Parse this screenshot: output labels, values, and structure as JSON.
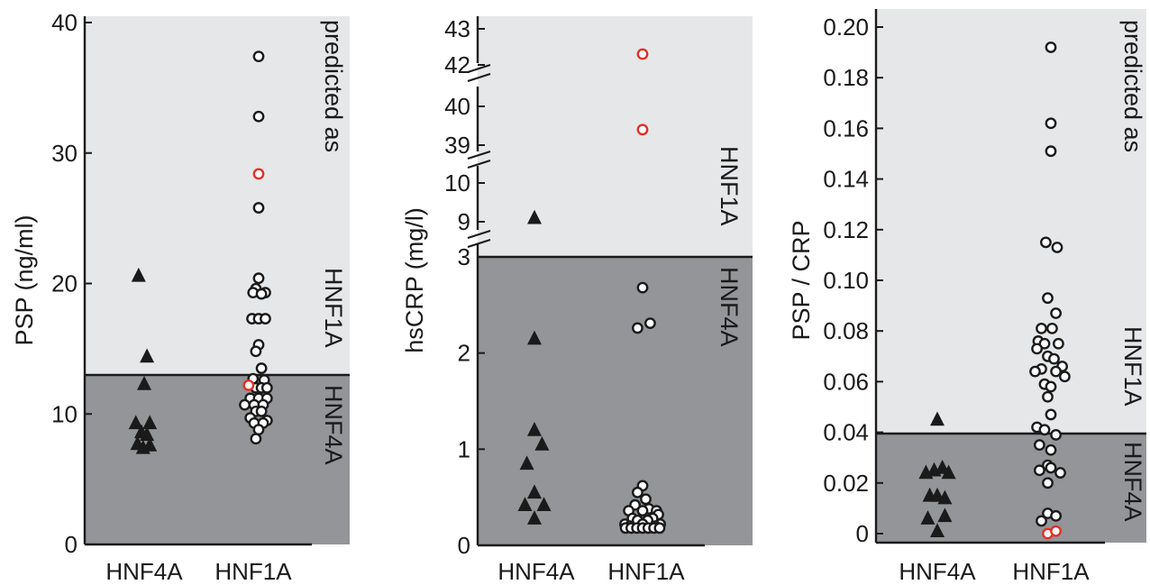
{
  "chart_data": [
    {
      "type": "scatter",
      "ylabel": "PSP (ng/ml)",
      "categories": [
        "HNF4A",
        "HNF1A"
      ],
      "ylim": [
        0,
        40
      ],
      "yticks": [
        0,
        10,
        20,
        30,
        40
      ],
      "threshold": 13,
      "zone_labels": {
        "upper": [
          "predicted as",
          "HNF1A"
        ],
        "lower": [
          "HNF4A"
        ]
      },
      "series": [
        {
          "name": "HNF4A",
          "marker": "triangle",
          "points": [
            [
              -0.1,
              20.6
            ],
            [
              0.05,
              14.4
            ],
            [
              0.0,
              12.3
            ],
            [
              -0.15,
              9.3
            ],
            [
              0.1,
              9.3
            ],
            [
              -0.05,
              8.6
            ],
            [
              0.05,
              8.4
            ],
            [
              -0.12,
              7.7
            ],
            [
              0.1,
              7.6
            ],
            [
              -0.02,
              7.4
            ]
          ]
        },
        {
          "name": "HNF1A",
          "marker": "circle",
          "points": [
            [
              0.0,
              37.4
            ],
            [
              0.0,
              32.8
            ],
            [
              0.0,
              25.8
            ],
            [
              0.0,
              20.4
            ],
            [
              -0.05,
              19.6
            ],
            [
              -0.1,
              19.3
            ],
            [
              0.12,
              19.3
            ],
            [
              0.05,
              19.2
            ],
            [
              -0.12,
              17.3
            ],
            [
              0.0,
              17.3
            ],
            [
              0.12,
              17.3
            ],
            [
              0.0,
              15.3
            ],
            [
              -0.05,
              14.8
            ],
            [
              0.05,
              13.5
            ],
            [
              -0.1,
              12.7
            ],
            [
              0.1,
              12.6
            ],
            [
              -0.05,
              12.0
            ],
            [
              0.05,
              12.0
            ],
            [
              0.15,
              12.0
            ],
            [
              -0.15,
              11.2
            ],
            [
              0.0,
              11.2
            ],
            [
              0.15,
              11.2
            ],
            [
              -0.25,
              10.7
            ],
            [
              -0.08,
              10.7
            ],
            [
              0.08,
              10.7
            ],
            [
              -0.05,
              10.2
            ],
            [
              0.05,
              10.2
            ],
            [
              -0.15,
              9.7
            ],
            [
              0.15,
              9.5
            ],
            [
              -0.08,
              9.3
            ],
            [
              0.08,
              9.3
            ],
            [
              0.0,
              8.8
            ],
            [
              -0.05,
              8.1
            ]
          ]
        },
        {
          "name": "HNF1A-red",
          "marker": "circle",
          "color": "#e32f25",
          "points": [
            [
              0.0,
              28.4
            ],
            [
              -0.18,
              12.2
            ]
          ]
        }
      ]
    },
    {
      "type": "scatter",
      "ylabel": "hsCRP (mg/l)",
      "categories": [
        "HNF4A",
        "HNF1A"
      ],
      "broken_axis": true,
      "ytick_labels": [
        "0",
        "1",
        "2",
        "3",
        "9",
        "10",
        "39",
        "40",
        "42",
        "43"
      ],
      "threshold": 3,
      "zone_labels": {
        "upper": [
          "HNF1A"
        ],
        "lower": [
          "HNF4A"
        ]
      },
      "series": [
        {
          "name": "HNF4A",
          "marker": "triangle",
          "points": [
            [
              0.0,
              9.1
            ],
            [
              0.0,
              2.15
            ],
            [
              0.0,
              1.2
            ],
            [
              0.12,
              1.05
            ],
            [
              -0.12,
              0.85
            ],
            [
              0.0,
              0.55
            ],
            [
              -0.15,
              0.42
            ],
            [
              0.15,
              0.42
            ],
            [
              0.0,
              0.28
            ]
          ]
        },
        {
          "name": "HNF1A",
          "marker": "circle",
          "points": [
            [
              0.0,
              2.68
            ],
            [
              0.12,
              2.31
            ],
            [
              -0.08,
              2.26
            ],
            [
              0.0,
              0.62
            ],
            [
              -0.08,
              0.55
            ],
            [
              0.05,
              0.48
            ],
            [
              -0.12,
              0.42
            ],
            [
              0.1,
              0.38
            ],
            [
              0.0,
              0.36
            ],
            [
              -0.22,
              0.36
            ],
            [
              0.22,
              0.36
            ],
            [
              0.25,
              0.32
            ],
            [
              -0.16,
              0.28
            ],
            [
              0.16,
              0.28
            ],
            [
              -0.08,
              0.26
            ],
            [
              0.08,
              0.26
            ],
            [
              -0.28,
              0.22
            ],
            [
              0.0,
              0.22
            ],
            [
              0.28,
              0.22
            ],
            [
              -0.2,
              0.2
            ],
            [
              0.2,
              0.2
            ],
            [
              -0.27,
              0.18
            ],
            [
              -0.18,
              0.18
            ],
            [
              -0.09,
              0.18
            ],
            [
              0.0,
              0.18
            ],
            [
              0.09,
              0.18
            ],
            [
              0.18,
              0.18
            ],
            [
              0.27,
              0.18
            ]
          ]
        },
        {
          "name": "HNF1A-red",
          "marker": "circle",
          "color": "#e32f25",
          "points": [
            [
              0.0,
              42.3
            ],
            [
              0.0,
              39.4
            ]
          ]
        }
      ]
    },
    {
      "type": "scatter",
      "ylabel": "PSP / CRP",
      "categories": [
        "HNF4A",
        "HNF1A"
      ],
      "ylim": [
        -0.004,
        0.205
      ],
      "yticks": [
        0,
        0.02,
        0.04,
        0.06,
        0.08,
        0.1,
        0.12,
        0.14,
        0.16,
        0.18,
        0.2
      ],
      "ytick_labels": [
        "0",
        "0.02",
        "0.04",
        "0.06",
        "0.08",
        "0.10",
        "0.12",
        "0.14",
        "0.16",
        "0.18",
        "0.20"
      ],
      "threshold": 0.04,
      "zone_labels": {
        "upper": [
          "predicted as",
          "HNF1A"
        ],
        "lower": [
          "HNF4A"
        ]
      },
      "series": [
        {
          "name": "HNF4A",
          "marker": "triangle",
          "points": [
            [
              0.0,
              0.045
            ],
            [
              -0.18,
              0.024
            ],
            [
              -0.05,
              0.025
            ],
            [
              0.08,
              0.026
            ],
            [
              0.18,
              0.024
            ],
            [
              -0.12,
              0.015
            ],
            [
              0.0,
              0.015
            ],
            [
              0.12,
              0.014
            ],
            [
              -0.15,
              0.006
            ],
            [
              0.12,
              0.007
            ],
            [
              0.0,
              0.001
            ]
          ]
        },
        {
          "name": "HNF1A",
          "marker": "circle",
          "points": [
            [
              0.0,
              0.192
            ],
            [
              0.0,
              0.162
            ],
            [
              0.0,
              0.151
            ],
            [
              -0.08,
              0.115
            ],
            [
              0.1,
              0.113
            ],
            [
              -0.05,
              0.093
            ],
            [
              0.08,
              0.087
            ],
            [
              -0.15,
              0.081
            ],
            [
              0.02,
              0.081
            ],
            [
              -0.2,
              0.076
            ],
            [
              -0.1,
              0.075
            ],
            [
              0.12,
              0.075
            ],
            [
              -0.22,
              0.073
            ],
            [
              -0.05,
              0.07
            ],
            [
              0.05,
              0.069
            ],
            [
              -0.15,
              0.065
            ],
            [
              0.18,
              0.066
            ],
            [
              -0.25,
              0.064
            ],
            [
              0.08,
              0.064
            ],
            [
              0.22,
              0.062
            ],
            [
              -0.1,
              0.059
            ],
            [
              0.0,
              0.058
            ],
            [
              -0.05,
              0.054
            ],
            [
              0.0,
              0.047
            ],
            [
              -0.22,
              0.042
            ],
            [
              -0.1,
              0.041
            ],
            [
              0.08,
              0.039
            ],
            [
              -0.18,
              0.035
            ],
            [
              0.0,
              0.033
            ],
            [
              -0.05,
              0.027
            ],
            [
              -0.18,
              0.025
            ],
            [
              0.0,
              0.026
            ],
            [
              0.15,
              0.024
            ],
            [
              -0.05,
              0.02
            ],
            [
              -0.05,
              0.008
            ],
            [
              0.08,
              0.007
            ],
            [
              -0.15,
              0.005
            ]
          ]
        },
        {
          "name": "HNF1A-red",
          "marker": "circle",
          "color": "#e32f25",
          "points": [
            [
              -0.05,
              0.0
            ],
            [
              0.08,
              0.001
            ]
          ]
        }
      ]
    }
  ]
}
